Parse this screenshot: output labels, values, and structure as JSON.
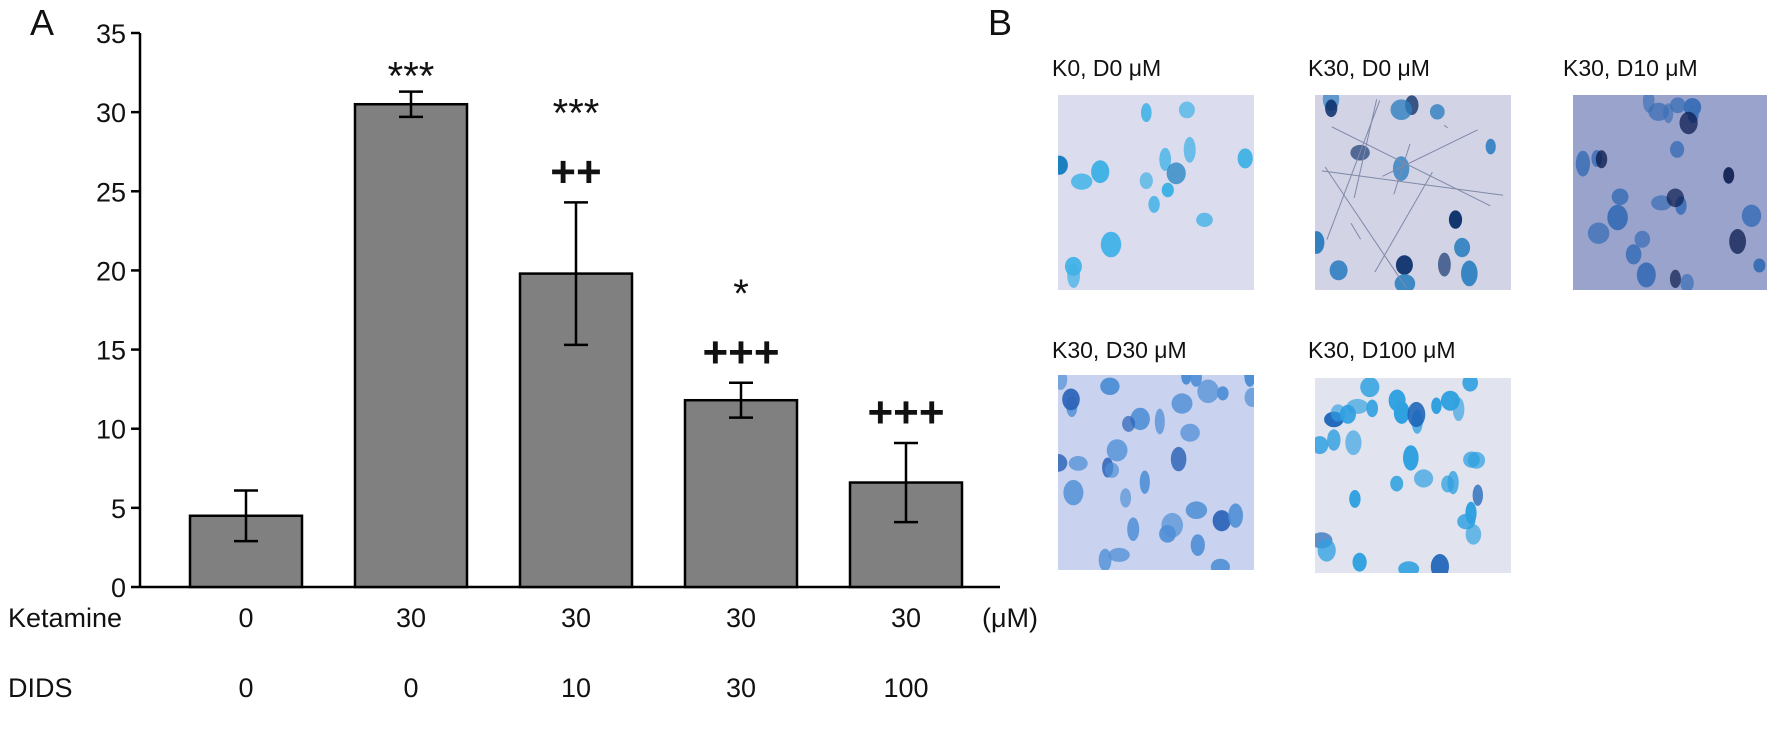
{
  "panels": {
    "a_letter": "A",
    "b_letter": "B"
  },
  "chart_data": {
    "type": "bar",
    "ylim": [
      0,
      35
    ],
    "yticks": [
      0,
      5,
      10,
      15,
      20,
      25,
      30,
      35
    ],
    "ytick_labels": [
      "0",
      "5",
      "10",
      "15",
      "20",
      "25",
      "30",
      "35"
    ],
    "values": [
      4.5,
      30.5,
      19.8,
      11.8,
      6.6
    ],
    "errors": [
      1.6,
      0.8,
      4.5,
      1.1,
      2.5
    ],
    "annotations": [
      [],
      [
        "***"
      ],
      [
        "***",
        "++"
      ],
      [
        "*",
        "+++"
      ],
      [
        "+++"
      ]
    ],
    "bar_color": "#808080",
    "conditions": {
      "ketamine_label": "Ketamine",
      "ketamine": [
        "0",
        "30",
        "30",
        "30",
        "30"
      ],
      "unit": "(μM)",
      "dids_label": "DIDS",
      "dids": [
        "0",
        "0",
        "10",
        "30",
        "100"
      ]
    }
  },
  "micrographs": [
    {
      "label": "K0, D0 μM",
      "bg": "#dcdcef",
      "cell": "#3fb1e6",
      "dark": "#1c7fc0"
    },
    {
      "label": "K30, D0 μM",
      "bg": "#d3d3e6",
      "cell": "#2e7fc0",
      "dark": "#0b2f6a"
    },
    {
      "label": "K30, D10 μM",
      "bg": "#9aa3cc",
      "cell": "#3b6fb6",
      "dark": "#0b1d4f"
    },
    {
      "label": "K30, D30 μM",
      "bg": "#c9d2ee",
      "cell": "#4f8fd6",
      "dark": "#2c63b8"
    },
    {
      "label": "K30, D100 μM",
      "bg": "#e1e3ef",
      "cell": "#2fa0e0",
      "dark": "#1a63b8"
    }
  ]
}
